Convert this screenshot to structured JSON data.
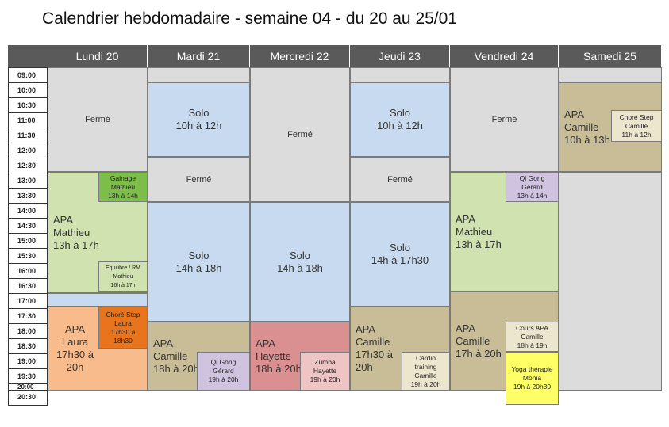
{
  "title": "Calendrier hebdomadaire - semaine 04 - du 20 au 25/01",
  "days": [
    {
      "label": "Lundi 20"
    },
    {
      "label": "Mardi 21"
    },
    {
      "label": "Mercredi 22"
    },
    {
      "label": "Jeudi 23"
    },
    {
      "label": "Vendredi 24"
    },
    {
      "label": "Samedi 25"
    }
  ],
  "times": [
    "09:00",
    "10:00",
    "10:30",
    "11:00",
    "11:30",
    "12:00",
    "12:30",
    "13:00",
    "13:30",
    "14:00",
    "14:30",
    "15:00",
    "15:30",
    "16:00",
    "16:30",
    "17:00",
    "17:30",
    "18:00",
    "18:30",
    "19:00",
    "19:30",
    "20:00",
    "20:30"
  ],
  "events": {
    "mon_ferme": "Fermé",
    "mon_apa": "APA\nMathieu\n13h à 17h",
    "mon_gainage": "Gainage\nMathieu\n13h à 14h",
    "mon_equilibre": "Equilibre / RM\nMathieu\n16h à 17h",
    "mon_apa_laura": "APA\nLaura\n17h30 à\n20h",
    "mon_chore": "Choré Step\nLaura\n17h30 à\n18h30",
    "tue_solo1": "Solo\n10h à 12h",
    "tue_ferme": "Fermé",
    "tue_solo2": "Solo\n14h à 18h",
    "tue_apa": "APA\nCamille\n18h à 20h",
    "tue_qigong": "Qi Gong\nGérard\n19h à 20h",
    "wed_ferme": "Fermé",
    "wed_solo": "Solo\n14h à 18h",
    "wed_apa": "APA\nHayette\n18h à 20h",
    "wed_zumba": "Zumba\nHayette\n19h à 20h",
    "thu_solo1": "Solo\n10h à 12h",
    "thu_ferme": "Fermé",
    "thu_solo2": "Solo\n14h à 17h30",
    "thu_apa": "APA\nCamille\n17h30 à\n20h",
    "thu_cardio": "Cardio\ntraining\nCamille\n19h à 20h",
    "fri_ferme": "Fermé",
    "fri_qigong": "Qi Gong\nGérard\n13h à 14h",
    "fri_apa": "APA\nMathieu\n13h à 17h",
    "fri_apa_camille": "APA\nCamille\n17h à 20h",
    "fri_cours": "Cours APA\nCamille\n18h à 19h",
    "fri_yoga": "Yoga thérapie\nMonia\n19h à 20h30",
    "sat_apa": "APA\nCamille\n10h à 13h",
    "sat_chore": "Choré Step\nCamille\n11h à 12h"
  }
}
